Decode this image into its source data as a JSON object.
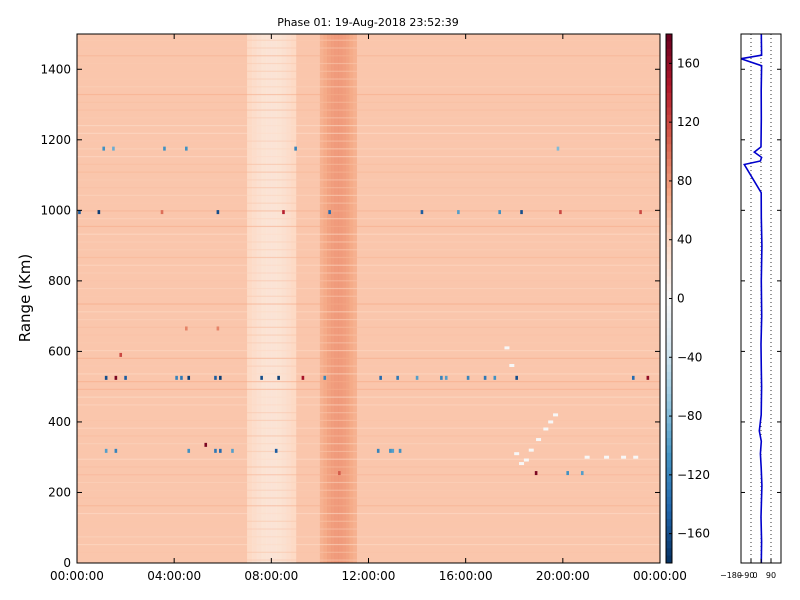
{
  "chart_data": [
    {
      "type": "heatmap",
      "title": "Phase 01: 19-Aug-2018 23:52:39",
      "xlabel": "",
      "ylabel": "Range (Km)",
      "x_tick_labels": [
        "00:00:00",
        "04:00:00",
        "08:00:00",
        "12:00:00",
        "16:00:00",
        "20:00:00",
        "00:00:00"
      ],
      "y_ticks": [
        0,
        200,
        400,
        600,
        800,
        1000,
        1200,
        1400
      ],
      "ylim": [
        0,
        1500
      ],
      "xlim_hours": [
        0,
        24
      ],
      "background_value": 50,
      "time_bands": [
        {
          "start_hour": 7.0,
          "end_hour": 9.0,
          "value": 22
        },
        {
          "start_hour": 10.0,
          "end_hour": 11.5,
          "value": 80
        }
      ],
      "marks": [
        {
          "x_hour": 0.1,
          "range_km": 995,
          "value": -150
        },
        {
          "x_hour": 0.9,
          "range_km": 995,
          "value": -170
        },
        {
          "x_hour": 3.5,
          "range_km": 995,
          "value": 100
        },
        {
          "x_hour": 5.8,
          "range_km": 995,
          "value": -160
        },
        {
          "x_hour": 8.5,
          "range_km": 995,
          "value": 140
        },
        {
          "x_hour": 10.4,
          "range_km": 995,
          "value": -140
        },
        {
          "x_hour": 14.2,
          "range_km": 995,
          "value": -150
        },
        {
          "x_hour": 15.7,
          "range_km": 995,
          "value": -100
        },
        {
          "x_hour": 17.4,
          "range_km": 995,
          "value": -110
        },
        {
          "x_hour": 18.3,
          "range_km": 995,
          "value": -160
        },
        {
          "x_hour": 19.9,
          "range_km": 995,
          "value": 120
        },
        {
          "x_hour": 23.2,
          "range_km": 995,
          "value": 120
        },
        {
          "x_hour": 1.1,
          "range_km": 1175,
          "value": -110
        },
        {
          "x_hour": 1.5,
          "range_km": 1175,
          "value": -90
        },
        {
          "x_hour": 3.6,
          "range_km": 1175,
          "value": -110
        },
        {
          "x_hour": 4.5,
          "range_km": 1175,
          "value": -110
        },
        {
          "x_hour": 9.0,
          "range_km": 1175,
          "value": -120
        },
        {
          "x_hour": 19.8,
          "range_km": 1175,
          "value": -80
        },
        {
          "x_hour": 1.2,
          "range_km": 525,
          "value": -160
        },
        {
          "x_hour": 1.6,
          "range_km": 525,
          "value": 170
        },
        {
          "x_hour": 2.0,
          "range_km": 525,
          "value": -150
        },
        {
          "x_hour": 4.1,
          "range_km": 525,
          "value": -120
        },
        {
          "x_hour": 4.3,
          "range_km": 525,
          "value": -130
        },
        {
          "x_hour": 4.6,
          "range_km": 525,
          "value": -170
        },
        {
          "x_hour": 5.7,
          "range_km": 525,
          "value": -150
        },
        {
          "x_hour": 5.9,
          "range_km": 525,
          "value": -170
        },
        {
          "x_hour": 7.6,
          "range_km": 525,
          "value": -160
        },
        {
          "x_hour": 8.3,
          "range_km": 525,
          "value": -170
        },
        {
          "x_hour": 9.3,
          "range_km": 525,
          "value": 150
        },
        {
          "x_hour": 10.2,
          "range_km": 525,
          "value": -120
        },
        {
          "x_hour": 12.5,
          "range_km": 525,
          "value": -140
        },
        {
          "x_hour": 13.2,
          "range_km": 525,
          "value": -130
        },
        {
          "x_hour": 14.0,
          "range_km": 525,
          "value": -100
        },
        {
          "x_hour": 15.0,
          "range_km": 525,
          "value": -120
        },
        {
          "x_hour": 15.2,
          "range_km": 525,
          "value": -100
        },
        {
          "x_hour": 16.1,
          "range_km": 525,
          "value": -120
        },
        {
          "x_hour": 16.8,
          "range_km": 525,
          "value": -130
        },
        {
          "x_hour": 17.2,
          "range_km": 525,
          "value": -110
        },
        {
          "x_hour": 18.1,
          "range_km": 525,
          "value": -160
        },
        {
          "x_hour": 22.9,
          "range_km": 525,
          "value": -140
        },
        {
          "x_hour": 23.5,
          "range_km": 525,
          "value": 160
        },
        {
          "x_hour": 1.2,
          "range_km": 318,
          "value": -100
        },
        {
          "x_hour": 1.6,
          "range_km": 318,
          "value": -120
        },
        {
          "x_hour": 4.6,
          "range_km": 318,
          "value": -110
        },
        {
          "x_hour": 5.7,
          "range_km": 318,
          "value": -130
        },
        {
          "x_hour": 5.9,
          "range_km": 318,
          "value": -140
        },
        {
          "x_hour": 6.4,
          "range_km": 318,
          "value": -100
        },
        {
          "x_hour": 8.2,
          "range_km": 318,
          "value": -150
        },
        {
          "x_hour": 12.4,
          "range_km": 318,
          "value": -120
        },
        {
          "x_hour": 12.9,
          "range_km": 318,
          "value": -110
        },
        {
          "x_hour": 13.0,
          "range_km": 318,
          "value": -100
        },
        {
          "x_hour": 13.3,
          "range_km": 318,
          "value": -110
        },
        {
          "x_hour": 5.3,
          "range_km": 335,
          "value": 170
        },
        {
          "x_hour": 4.5,
          "range_km": 665,
          "value": 90
        },
        {
          "x_hour": 5.8,
          "range_km": 665,
          "value": 90
        },
        {
          "x_hour": 1.8,
          "range_km": 590,
          "value": 120
        },
        {
          "x_hour": 10.8,
          "range_km": 255,
          "value": 110
        },
        {
          "x_hour": 18.9,
          "range_km": 255,
          "value": 170
        },
        {
          "x_hour": 20.2,
          "range_km": 255,
          "value": -110
        },
        {
          "x_hour": 20.8,
          "range_km": 255,
          "value": -100
        }
      ],
      "white_trail": [
        {
          "x_hour": 17.7,
          "range_km": 610
        },
        {
          "x_hour": 17.9,
          "range_km": 560
        },
        {
          "x_hour": 18.1,
          "range_km": 310
        },
        {
          "x_hour": 18.3,
          "range_km": 282
        },
        {
          "x_hour": 18.5,
          "range_km": 292
        },
        {
          "x_hour": 18.7,
          "range_km": 320
        },
        {
          "x_hour": 19.0,
          "range_km": 350
        },
        {
          "x_hour": 19.3,
          "range_km": 380
        },
        {
          "x_hour": 19.5,
          "range_km": 400
        },
        {
          "x_hour": 19.7,
          "range_km": 420
        },
        {
          "x_hour": 21.0,
          "range_km": 300
        },
        {
          "x_hour": 21.8,
          "range_km": 300
        },
        {
          "x_hour": 22.5,
          "range_km": 300
        },
        {
          "x_hour": 23.0,
          "range_km": 300
        }
      ]
    },
    {
      "type": "colorbar",
      "ticks": [
        160,
        120,
        80,
        40,
        0,
        -40,
        -80,
        -120,
        -160
      ],
      "vmin": -180,
      "vmax": 180,
      "colors": {
        "dark_blue": "#053061",
        "blue": "#2166ac",
        "mid_blue": "#4393c3",
        "light_blue": "#92c5de",
        "pale_blue": "#d1e5f0",
        "white": "#f7f7f7",
        "pale_red": "#fddbc7",
        "light_red": "#f4a582",
        "red": "#d6604d",
        "mid_red": "#b2182b",
        "dark_red": "#67001f"
      }
    },
    {
      "type": "line",
      "tick_labels": [
        "-180",
        "-90",
        "0",
        "90"
      ],
      "xlim": [
        -180,
        180
      ],
      "ylim": [
        0,
        1500
      ],
      "line_color": "#0000cc",
      "profile": [
        {
          "x": 3,
          "y": 0
        },
        {
          "x": 5,
          "y": 60
        },
        {
          "x": 0,
          "y": 130
        },
        {
          "x": 8,
          "y": 220
        },
        {
          "x": 2,
          "y": 270
        },
        {
          "x": -5,
          "y": 310
        },
        {
          "x": 3,
          "y": 345
        },
        {
          "x": -15,
          "y": 375
        },
        {
          "x": 2,
          "y": 420
        },
        {
          "x": 5,
          "y": 500
        },
        {
          "x": 3,
          "y": 550
        },
        {
          "x": 0,
          "y": 620
        },
        {
          "x": 6,
          "y": 700
        },
        {
          "x": 3,
          "y": 800
        },
        {
          "x": 8,
          "y": 900
        },
        {
          "x": 3,
          "y": 980
        },
        {
          "x": 2,
          "y": 1050
        },
        {
          "x": -150,
          "y": 1130
        },
        {
          "x": -5,
          "y": 1140
        },
        {
          "x": 5,
          "y": 1150
        },
        {
          "x": -60,
          "y": 1165
        },
        {
          "x": 0,
          "y": 1180
        },
        {
          "x": 3,
          "y": 1260
        },
        {
          "x": 2,
          "y": 1340
        },
        {
          "x": 5,
          "y": 1410
        },
        {
          "x": -180,
          "y": 1430
        },
        {
          "x": 5,
          "y": 1440
        },
        {
          "x": 3,
          "y": 1500
        }
      ]
    }
  ]
}
